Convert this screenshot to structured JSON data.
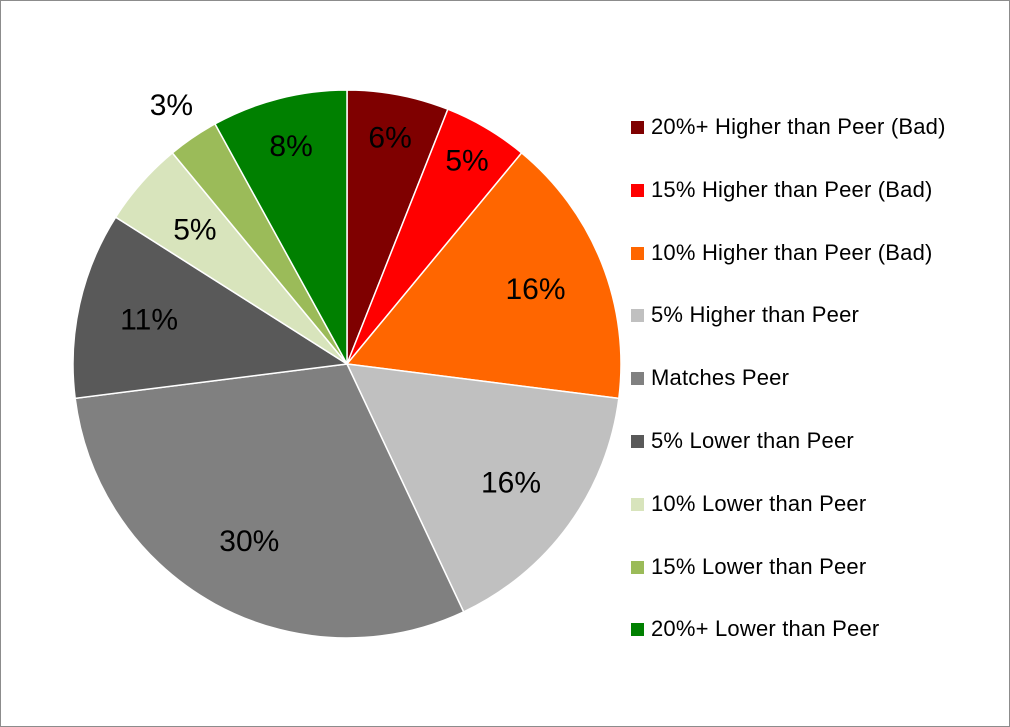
{
  "chart_data": {
    "type": "pie",
    "title": "",
    "start": "12 o'clock, clockwise",
    "legend_position": "right",
    "slices": [
      {
        "label": "20%+ Higher than Peer (Bad)",
        "value": 6,
        "value_label": "6%",
        "color": "#7f0000"
      },
      {
        "label": "15% Higher than Peer (Bad)",
        "value": 5,
        "value_label": "5%",
        "color": "#ff0000"
      },
      {
        "label": "10% Higher than Peer (Bad)",
        "value": 16,
        "value_label": "16%",
        "color": "#ff6600"
      },
      {
        "label": "5% Higher than Peer",
        "value": 16,
        "value_label": "16%",
        "color": "#c0c0c0"
      },
      {
        "label": "Matches Peer",
        "value": 30,
        "value_label": "30%",
        "color": "#808080"
      },
      {
        "label": "5% Lower than Peer",
        "value": 11,
        "value_label": "11%",
        "color": "#595959"
      },
      {
        "label": "10% Lower than Peer",
        "value": 5,
        "value_label": "5%",
        "color": "#d8e4bc"
      },
      {
        "label": "15% Lower than Peer",
        "value": 3,
        "value_label": "3%",
        "color": "#9bbb59"
      },
      {
        "label": "20%+ Lower than Peer",
        "value": 8,
        "value_label": "8%",
        "color": "#008000"
      }
    ]
  }
}
